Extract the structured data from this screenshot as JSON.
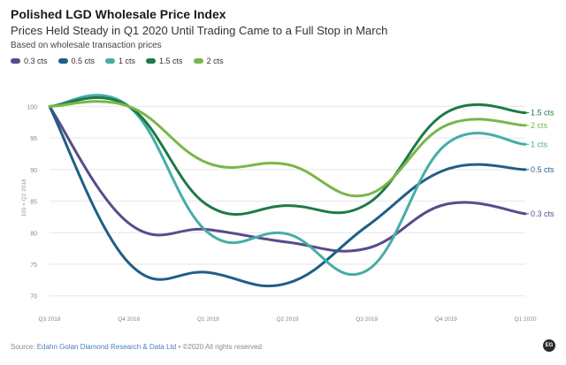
{
  "title": "Polished LGD Wholesale Price Index",
  "subtitle": "Prices Held Steady in Q1 2020 Until Trading Came to a Full Stop in March",
  "note": "Based on wholesale transaction prices",
  "footer": {
    "prefix": "Source: ",
    "source": "Edahn Golan Diamond Research & Data Ltd",
    "suffix": " • ©2020 All rights reserved"
  },
  "badge": "EG",
  "colors": {
    "0.3 cts": "#5b4a8b",
    "0.5 cts": "#1f5f86",
    "1 cts": "#46ada6",
    "1.5 cts": "#1d7a46",
    "2 cts": "#7bb54a"
  },
  "chart_data": {
    "type": "line",
    "categories": [
      "Q3 2018",
      "Q4 2018",
      "Q1 2019",
      "Q2 2019",
      "Q3 2019",
      "Q4 2019",
      "Q1 2020"
    ],
    "ylabel": "100 = Q2 2018",
    "yticks": [
      70,
      75,
      80,
      85,
      90,
      95,
      100
    ],
    "ylim": [
      68,
      103
    ],
    "grid": true,
    "legend": "top-left",
    "series": [
      {
        "name": "0.3 cts",
        "values": [
          100,
          81.5,
          80.5,
          78.5,
          77.5,
          84.5,
          83
        ],
        "end_label": "0.3 cts"
      },
      {
        "name": "0.5 cts",
        "values": [
          100,
          75.2,
          73.7,
          72,
          81,
          90,
          90
        ],
        "end_label": "0.5 cts"
      },
      {
        "name": "1 cts",
        "values": [
          100,
          100,
          80,
          79.8,
          74,
          94,
          94
        ],
        "end_label": "1 cts"
      },
      {
        "name": "1.5 cts",
        "values": [
          100,
          100,
          84.3,
          84.3,
          84.5,
          99,
          99
        ],
        "end_label": "1.5 cts"
      },
      {
        "name": "2 cts",
        "values": [
          100,
          100,
          91,
          90.8,
          86,
          97,
          97
        ],
        "end_label": "2 cts"
      }
    ]
  }
}
